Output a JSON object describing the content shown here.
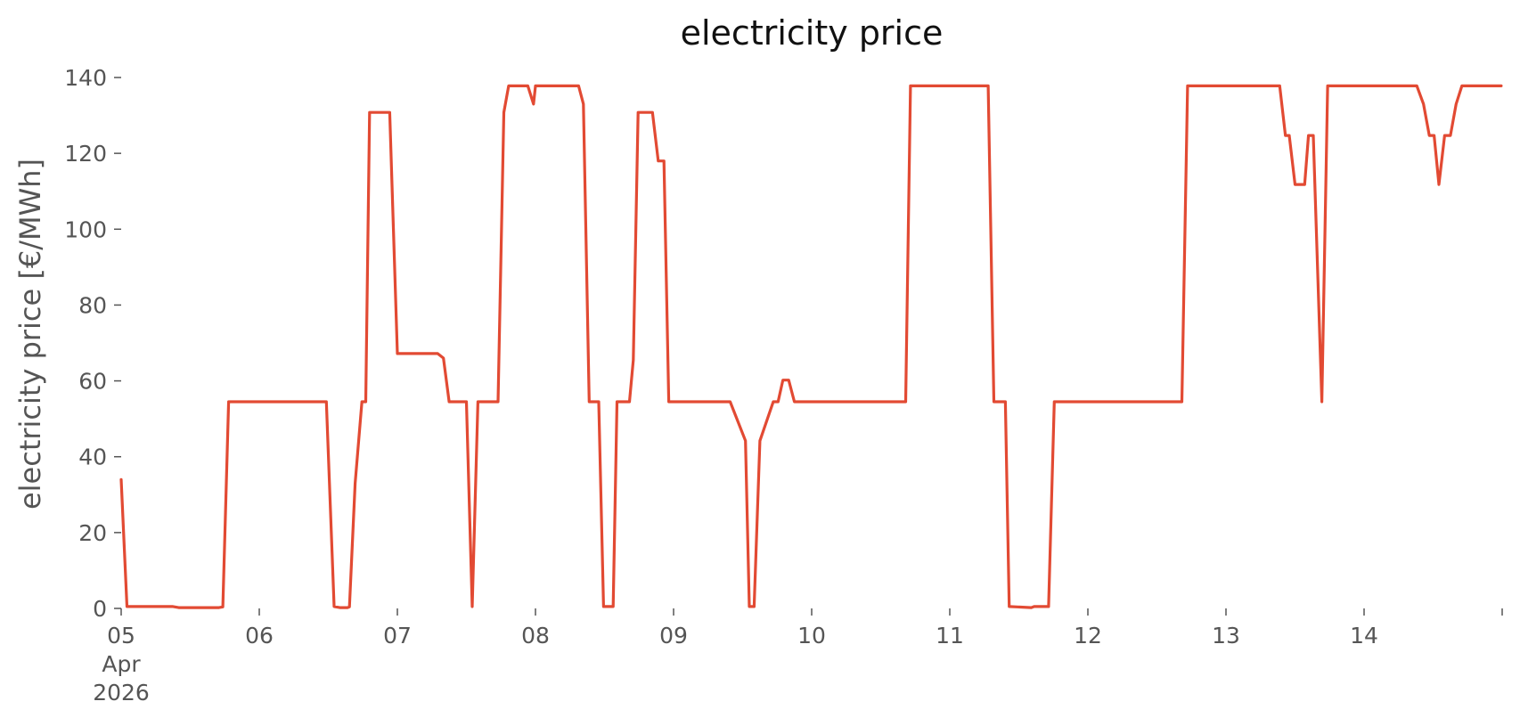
{
  "chart_data": {
    "type": "line",
    "title": "electricity price",
    "xlabel": "",
    "ylabel": "electricity price [€/MWh]",
    "x_unit": "days",
    "xlim": [
      "2026-04-05",
      "2026-04-15"
    ],
    "ylim": [
      0,
      140
    ],
    "grid": false,
    "legend": "none",
    "x_ticks": [
      {
        "x": "2026-04-05",
        "lines": [
          "05",
          "Apr",
          "2026"
        ]
      },
      {
        "x": "2026-04-06",
        "lines": [
          "06"
        ]
      },
      {
        "x": "2026-04-07",
        "lines": [
          "07"
        ]
      },
      {
        "x": "2026-04-08",
        "lines": [
          "08"
        ]
      },
      {
        "x": "2026-04-09",
        "lines": [
          "09"
        ]
      },
      {
        "x": "2026-04-10",
        "lines": [
          "10"
        ]
      },
      {
        "x": "2026-04-11",
        "lines": [
          "11"
        ]
      },
      {
        "x": "2026-04-12",
        "lines": [
          "12"
        ]
      },
      {
        "x": "2026-04-13",
        "lines": [
          "13"
        ]
      },
      {
        "x": "2026-04-14",
        "lines": [
          "14"
        ]
      },
      {
        "x": "2026-04-15",
        "lines": [
          ""
        ]
      }
    ],
    "y_ticks": [
      0,
      20,
      40,
      60,
      80,
      100,
      120,
      140
    ],
    "series": [
      {
        "color": "#e24a33",
        "points": [
          [
            "2026-04-05 00:00",
            34
          ],
          [
            "2026-04-05 01:00",
            0.5
          ],
          [
            "2026-04-05 09:00",
            0.5
          ],
          [
            "2026-04-05 10:00",
            0.2
          ],
          [
            "2026-04-05 17:00",
            0.2
          ],
          [
            "2026-04-05 17:40",
            0.4
          ],
          [
            "2026-04-05 18:40",
            54.5
          ],
          [
            "2026-04-06 11:40",
            54.5
          ],
          [
            "2026-04-06 13:00",
            0.5
          ],
          [
            "2026-04-06 14:00",
            0.2
          ],
          [
            "2026-04-06 15:20",
            0.2
          ],
          [
            "2026-04-06 15:40",
            0.4
          ],
          [
            "2026-04-06 16:40",
            33
          ],
          [
            "2026-04-06 17:50",
            54.5
          ],
          [
            "2026-04-06 18:30",
            54.5
          ],
          [
            "2026-04-06 19:10",
            130.8
          ],
          [
            "2026-04-06 22:40",
            130.8
          ],
          [
            "2026-04-07 00:00",
            67.2
          ],
          [
            "2026-04-07 07:00",
            67.2
          ],
          [
            "2026-04-07 08:00",
            66
          ],
          [
            "2026-04-07 09:00",
            54.5
          ],
          [
            "2026-04-07 12:00",
            54.5
          ],
          [
            "2026-04-07 13:00",
            0.5
          ],
          [
            "2026-04-07 14:00",
            54.5
          ],
          [
            "2026-04-07 17:30",
            54.5
          ],
          [
            "2026-04-07 18:30",
            130.8
          ],
          [
            "2026-04-07 19:20",
            137.8
          ],
          [
            "2026-04-07 22:40",
            137.8
          ],
          [
            "2026-04-07 23:40",
            133
          ],
          [
            "2026-04-08 00:00",
            137.8
          ],
          [
            "2026-04-08 07:30",
            137.8
          ],
          [
            "2026-04-08 08:20",
            133
          ],
          [
            "2026-04-08 09:20",
            54.5
          ],
          [
            "2026-04-08 11:00",
            54.5
          ],
          [
            "2026-04-08 11:50",
            0.5
          ],
          [
            "2026-04-08 13:30",
            0.5
          ],
          [
            "2026-04-08 14:10",
            54.5
          ],
          [
            "2026-04-08 16:20",
            54.5
          ],
          [
            "2026-04-08 17:00",
            65.5
          ],
          [
            "2026-04-08 17:50",
            130.8
          ],
          [
            "2026-04-08 20:20",
            130.8
          ],
          [
            "2026-04-08 21:20",
            118
          ],
          [
            "2026-04-08 22:20",
            118
          ],
          [
            "2026-04-08 23:10",
            54.5
          ],
          [
            "2026-04-09 09:50",
            54.5
          ],
          [
            "2026-04-09 12:30",
            44.2
          ],
          [
            "2026-04-09 13:10",
            0.5
          ],
          [
            "2026-04-09 14:00",
            0.5
          ],
          [
            "2026-04-09 15:00",
            44.2
          ],
          [
            "2026-04-09 17:20",
            54.5
          ],
          [
            "2026-04-09 18:10",
            54.5
          ],
          [
            "2026-04-09 19:00",
            60.2
          ],
          [
            "2026-04-09 20:00",
            60.2
          ],
          [
            "2026-04-09 21:00",
            54.5
          ],
          [
            "2026-04-10 16:20",
            54.5
          ],
          [
            "2026-04-10 17:10",
            137.8
          ],
          [
            "2026-04-11 06:40",
            137.8
          ],
          [
            "2026-04-11 07:40",
            54.5
          ],
          [
            "2026-04-11 09:40",
            54.5
          ],
          [
            "2026-04-11 10:20",
            0.5
          ],
          [
            "2026-04-11 14:10",
            0.2
          ],
          [
            "2026-04-11 14:40",
            0.5
          ],
          [
            "2026-04-11 17:10",
            0.5
          ],
          [
            "2026-04-11 18:10",
            54.5
          ],
          [
            "2026-04-12 16:20",
            54.5
          ],
          [
            "2026-04-12 17:20",
            137.8
          ],
          [
            "2026-04-13 09:20",
            137.8
          ],
          [
            "2026-04-13 10:20",
            124.7
          ],
          [
            "2026-04-13 11:00",
            124.7
          ],
          [
            "2026-04-13 12:00",
            111.8
          ],
          [
            "2026-04-13 13:40",
            111.8
          ],
          [
            "2026-04-13 14:20",
            124.7
          ],
          [
            "2026-04-13 15:10",
            124.7
          ],
          [
            "2026-04-13 16:40",
            54.5
          ],
          [
            "2026-04-13 17:40",
            137.8
          ],
          [
            "2026-04-14 09:10",
            137.8
          ],
          [
            "2026-04-14 10:20",
            133
          ],
          [
            "2026-04-14 11:20",
            124.7
          ],
          [
            "2026-04-14 12:10",
            124.7
          ],
          [
            "2026-04-14 13:00",
            111.8
          ],
          [
            "2026-04-14 14:00",
            124.7
          ],
          [
            "2026-04-14 15:00",
            124.7
          ],
          [
            "2026-04-14 16:00",
            133
          ],
          [
            "2026-04-14 17:00",
            137.8
          ],
          [
            "2026-04-14 23:50",
            137.8
          ]
        ]
      }
    ]
  }
}
